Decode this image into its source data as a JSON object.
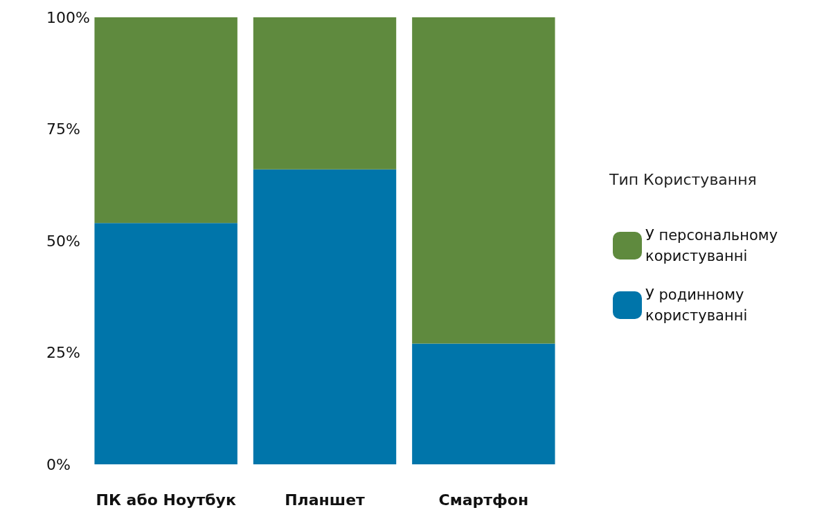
{
  "chart_data": {
    "type": "bar",
    "stacked": true,
    "categories": [
      "ПК або Ноутбук",
      "Планшет",
      "Смартфон"
    ],
    "series": [
      {
        "name": "У родинному користуванні",
        "color": "#0075aa",
        "values": [
          54,
          66,
          27
        ]
      },
      {
        "name": "У персональному користуванні",
        "color": "#5f8a3e",
        "values": [
          46,
          34,
          73
        ]
      }
    ],
    "ylim": [
      0,
      100
    ],
    "yticks": [
      {
        "value": 0,
        "label": "0%"
      },
      {
        "value": 25,
        "label": "25%"
      },
      {
        "value": 50,
        "label": "50%"
      },
      {
        "value": 75,
        "label": "75%"
      },
      {
        "value": 100,
        "label": "100%"
      }
    ],
    "grid": false,
    "legend": "right",
    "legend_title": "Тип Користування"
  }
}
